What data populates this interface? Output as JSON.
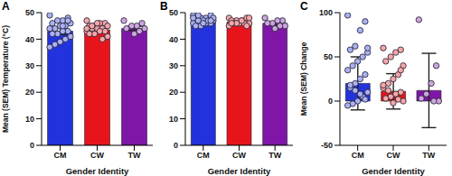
{
  "chart_data": [
    {
      "type": "bar",
      "title": "A",
      "x_label": "Gender Identity",
      "y_label": "Mean (SEM) Temperature (°C)",
      "categories": [
        "CM",
        "CW",
        "TW"
      ],
      "values": [
        43,
        43.5,
        44
      ],
      "errors": [
        1.2,
        0.7,
        0.8
      ],
      "colors": [
        "#2233dd",
        "#e8141c",
        "#7f16a8"
      ],
      "points": [
        [
          49,
          48,
          47,
          47,
          46,
          46,
          45,
          45,
          44,
          44,
          43,
          43,
          42,
          42,
          41,
          40,
          39,
          38,
          37,
          47,
          45
        ],
        [
          47,
          46,
          46,
          45,
          45,
          45,
          44,
          44,
          44,
          43,
          43,
          43,
          42,
          42,
          41,
          40,
          46,
          45,
          44
        ],
        [
          47,
          46,
          45,
          45,
          44,
          44,
          43,
          42
        ]
      ],
      "ylim": [
        0,
        50
      ],
      "yticks": [
        0,
        10,
        20,
        30,
        40,
        50
      ]
    },
    {
      "type": "bar",
      "title": "B",
      "x_label": "Gender Identity",
      "categories": [
        "CM",
        "CW",
        "TW"
      ],
      "values": [
        47,
        46.5,
        46
      ],
      "errors": [
        0.4,
        0.3,
        0.6
      ],
      "colors": [
        "#2233dd",
        "#e8141c",
        "#7f16a8"
      ],
      "points": [
        [
          49,
          49,
          48,
          48,
          48,
          47,
          47,
          47,
          47,
          46,
          46,
          46,
          45,
          45,
          48,
          47,
          46,
          49,
          48,
          47
        ],
        [
          48,
          48,
          47,
          47,
          47,
          46,
          46,
          46,
          46,
          45,
          45,
          47,
          46,
          46,
          48
        ],
        [
          48,
          47,
          47,
          46,
          46,
          45,
          45,
          44
        ]
      ],
      "ylim": [
        0,
        50
      ],
      "yticks": [
        0,
        10,
        20,
        30,
        40,
        50
      ]
    },
    {
      "type": "bar",
      "title": "C",
      "x_label": "Gender Identity",
      "y_label": "Mean (SEM) Change",
      "categories": [
        "CM",
        "CW",
        "TW"
      ],
      "values": [
        20,
        11,
        12
      ],
      "errors": [
        30,
        20,
        42
      ],
      "colors": [
        "#2233dd",
        "#e8141c",
        "#7f16a8"
      ],
      "points": [
        [
          97,
          90,
          80,
          62,
          58,
          55,
          50,
          45,
          40,
          35,
          30,
          25,
          20,
          15,
          10,
          5,
          0,
          -3,
          -5,
          2,
          8,
          12,
          18,
          60
        ],
        [
          60,
          58,
          55,
          50,
          45,
          40,
          30,
          25,
          20,
          15,
          10,
          8,
          5,
          3,
          0,
          2,
          -2,
          12,
          18,
          35
        ],
        [
          92,
          40,
          20,
          8,
          3,
          0,
          0
        ]
      ],
      "ylim": [
        -50,
        100
      ],
      "yticks": [
        -50,
        0,
        50,
        100
      ]
    }
  ]
}
